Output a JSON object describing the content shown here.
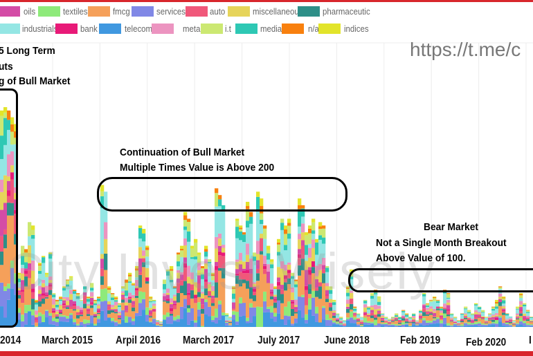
{
  "legend": [
    {
      "name": "oils",
      "color": "#d44ca6"
    },
    {
      "name": "textiles",
      "color": "#8eea7a"
    },
    {
      "name": "fmcg",
      "color": "#f5a05a"
    },
    {
      "name": "services",
      "color": "#8088e6"
    },
    {
      "name": "auto",
      "color": "#f0587a"
    },
    {
      "name": "miscellaneous",
      "color": "#e6d45a"
    },
    {
      "name": "pharmaceutic",
      "color": "#2e8f88"
    },
    {
      "name": "industrials",
      "color": "#94e6e4"
    },
    {
      "name": "bank",
      "color": "#e81a78"
    },
    {
      "name": "telecom",
      "color": "#4098e0"
    },
    {
      "name": "metals",
      "color": "#ec94c0"
    },
    {
      "name": "i.t",
      "color": "#cce872"
    },
    {
      "name": "media",
      "color": "#2ec8b4"
    },
    {
      "name": "n/a",
      "color": "#f8800e"
    },
    {
      "name": "indices",
      "color": "#e2e42a"
    }
  ],
  "annotations": {
    "bull_start": [
      "5 Long Term",
      "uts",
      "g of Bull Market"
    ],
    "continuation": [
      "Continuation of Bull Market",
      "Multiple Times Value is Above 200"
    ],
    "bear": [
      "Bear Market",
      "Not a Single Month Breakout",
      "Above Value of 100."
    ]
  },
  "url_text": "https://t.me/c",
  "watermark": "City Invest Wisely",
  "chart_data": {
    "type": "bar",
    "stacked": true,
    "title": "",
    "xlabel": "",
    "ylabel": "",
    "ylim": [
      0,
      420
    ],
    "grid": true,
    "legend_position": "top",
    "x_tick_labels": [
      "2014",
      "March 2015",
      "Arpil 2016",
      "March 2017",
      "July 2017",
      "June 2018",
      "Feb 2019",
      "Feb 2020",
      "I"
    ],
    "series_names": [
      "oils",
      "textiles",
      "fmcg",
      "services",
      "auto",
      "miscellaneous",
      "pharmaceutic",
      "industrials",
      "bank",
      "telecom",
      "metals",
      "i.t",
      "media",
      "n/a",
      "indices"
    ],
    "totals": [
      320,
      325,
      320,
      310,
      300,
      80,
      120,
      115,
      155,
      150,
      40,
      95,
      105,
      80,
      110,
      50,
      40,
      45,
      60,
      70,
      75,
      55,
      50,
      40,
      60,
      45,
      65,
      40,
      45,
      210,
      200,
      60,
      50,
      45,
      35,
      60,
      70,
      80,
      65,
      90,
      150,
      145,
      120,
      45,
      40,
      10,
      8,
      70,
      85,
      90,
      60,
      110,
      120,
      170,
      160,
      120,
      130,
      110,
      90,
      120,
      100,
      80,
      205,
      195,
      180,
      20,
      15,
      60,
      160,
      150,
      140,
      185,
      170,
      110,
      200,
      190,
      150,
      120,
      100,
      60,
      130,
      160,
      150,
      160,
      80,
      70,
      190,
      180,
      140,
      150,
      160,
      130,
      155,
      150,
      90,
      60,
      40,
      20,
      15,
      10,
      60,
      85,
      30,
      20,
      15,
      40,
      30,
      50,
      55,
      45,
      20,
      15,
      12,
      15,
      20,
      15,
      25,
      20,
      15,
      20,
      10,
      25,
      50,
      35,
      40,
      45,
      40,
      30,
      55,
      50,
      20,
      15,
      10,
      20,
      30,
      25,
      20,
      35,
      30,
      25,
      15,
      20,
      30,
      40,
      60,
      45,
      20,
      15,
      10,
      30,
      50,
      35,
      25,
      15
    ]
  }
}
